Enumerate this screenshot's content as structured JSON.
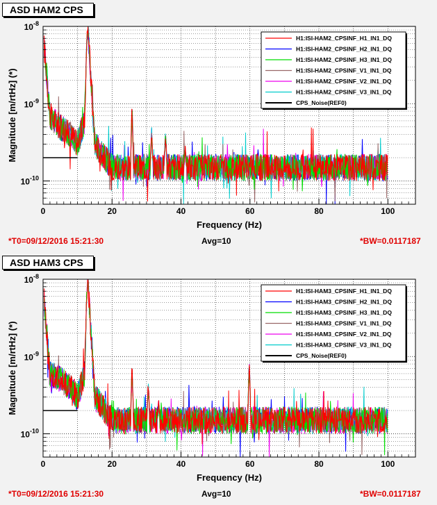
{
  "panels": [
    {
      "title": "ASD HAM2 CPS",
      "footer": {
        "t0": "*T0=09/12/2016 15:21:30",
        "avg": "Avg=10",
        "bw": "*BW=0.0117187"
      }
    },
    {
      "title": "ASD HAM3 CPS",
      "footer": {
        "t0": "*T0=09/12/2016 15:21:30",
        "avg": "Avg=10",
        "bw": "*BW=0.0117187"
      }
    }
  ],
  "chart_data": [
    {
      "type": "line",
      "title": "ASD HAM2 CPS",
      "xlabel": "Frequency (Hz)",
      "ylabel": "Magnitude [m/rtHz] (*)",
      "xlim": [
        0,
        108
      ],
      "ylim": [
        5e-11,
        1e-08
      ],
      "yscale": "log",
      "grid": true,
      "legend_position": "top-right",
      "x_ticks": [
        "0",
        "20",
        "40",
        "60",
        "80",
        "100"
      ],
      "y_ticks": [
        "10^-10",
        "10^-9",
        "10^-8"
      ],
      "series": [
        {
          "name": "H1:ISI-HAM2_CPSINF_H1_IN1_DQ",
          "color": "#ff0000"
        },
        {
          "name": "H1:ISI-HAM2_CPSINF_H2_IN1_DQ",
          "color": "#0000ff"
        },
        {
          "name": "H1:ISI-HAM2_CPSINF_H3_IN1_DQ",
          "color": "#00dd00"
        },
        {
          "name": "H1:ISI-HAM2_CPSINF_V1_IN1_DQ",
          "color": "#996666"
        },
        {
          "name": "H1:ISI-HAM2_CPSINF_V2_IN1_DQ",
          "color": "#ee00ee"
        },
        {
          "name": "H1:ISI-HAM2_CPSINF_V3_IN1_DQ",
          "color": "#00cccc"
        },
        {
          "name": "CPS_Noise(REF0)",
          "color": "#000000",
          "x": [
            0,
            10
          ],
          "y": [
            2e-10,
            2e-10
          ]
        }
      ],
      "envelope": {
        "x": [
          0,
          2,
          5,
          8,
          10,
          12,
          13,
          15,
          18,
          20,
          40,
          60,
          80,
          100
        ],
        "y": [
          8e-09,
          7e-10,
          5e-10,
          4e-10,
          3e-10,
          6e-10,
          1e-08,
          3e-10,
          2e-10,
          1.5e-10,
          1.5e-10,
          1.5e-10,
          1.5e-10,
          1.5e-10
        ]
      },
      "peaks": [
        {
          "x": 12.8,
          "y": 9e-09
        },
        {
          "x": 25.8,
          "y": 1e-09
        },
        {
          "x": 31.5,
          "y": 5e-10
        },
        {
          "x": 35.5,
          "y": 5e-10
        },
        {
          "x": 41.2,
          "y": 3e-10
        },
        {
          "x": 51.5,
          "y": 8e-11
        }
      ]
    },
    {
      "type": "line",
      "title": "ASD HAM3 CPS",
      "xlabel": "Frequency (Hz)",
      "ylabel": "Magnitude [m/rtHz] (*)",
      "xlim": [
        0,
        108
      ],
      "ylim": [
        5e-11,
        1e-08
      ],
      "yscale": "log",
      "grid": true,
      "legend_position": "top-right",
      "x_ticks": [
        "0",
        "20",
        "40",
        "60",
        "80",
        "100"
      ],
      "y_ticks": [
        "10^-10",
        "10^-9",
        "10^-8"
      ],
      "series": [
        {
          "name": "H1:ISI-HAM3_CPSINF_H1_IN1_DQ",
          "color": "#ff0000"
        },
        {
          "name": "H1:ISI-HAM3_CPSINF_H2_IN1_DQ",
          "color": "#0000ff"
        },
        {
          "name": "H1:ISI-HAM3_CPSINF_H3_IN1_DQ",
          "color": "#00dd00"
        },
        {
          "name": "H1:ISI-HAM3_CPSINF_V1_IN1_DQ",
          "color": "#996666"
        },
        {
          "name": "H1:ISI-HAM3_CPSINF_V2_IN1_DQ",
          "color": "#ee00ee"
        },
        {
          "name": "H1:ISI-HAM3_CPSINF_V3_IN1_DQ",
          "color": "#00cccc"
        },
        {
          "name": "CPS_Noise(REF0)",
          "color": "#000000",
          "x": [
            0,
            10
          ],
          "y": [
            2e-10,
            2e-10
          ]
        }
      ],
      "envelope": {
        "x": [
          0,
          2,
          5,
          8,
          10,
          12,
          13,
          15,
          18,
          20,
          40,
          60,
          80,
          100
        ],
        "y": [
          8e-09,
          6e-10,
          5e-10,
          4e-10,
          3e-10,
          6e-10,
          1e-08,
          3e-10,
          2e-10,
          1.5e-10,
          1.5e-10,
          1.5e-10,
          1.5e-10,
          1.5e-10
        ]
      },
      "peaks": [
        {
          "x": 12.8,
          "y": 9e-09
        },
        {
          "x": 25.8,
          "y": 8e-10
        },
        {
          "x": 30.5,
          "y": 5e-10
        },
        {
          "x": 59.8,
          "y": 9e-10
        },
        {
          "x": 33.5,
          "y": 3e-10
        }
      ]
    }
  ]
}
